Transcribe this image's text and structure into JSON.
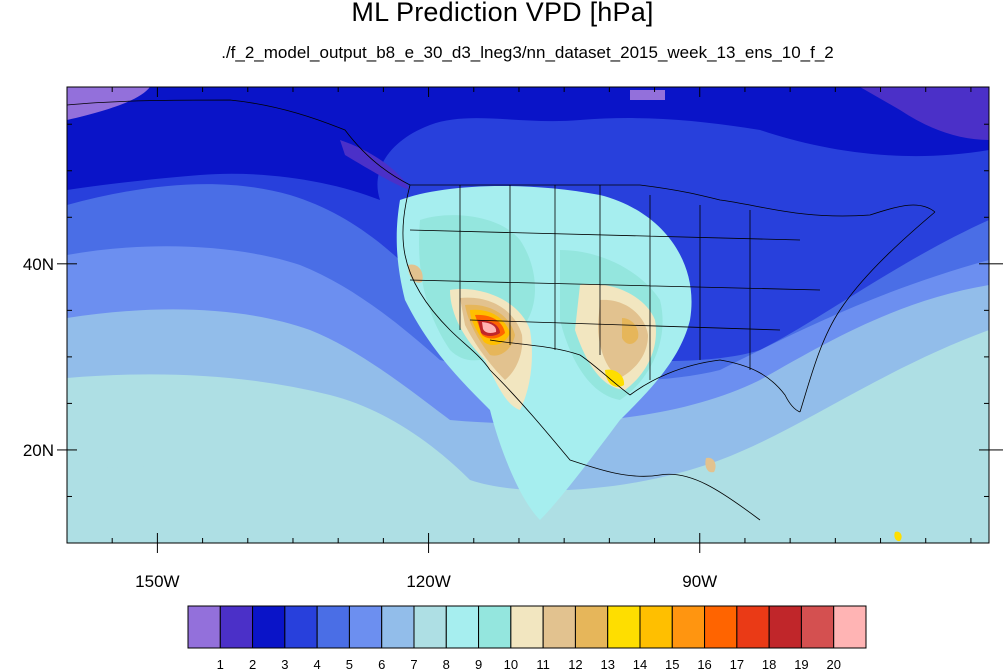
{
  "title": "ML Prediction VPD [hPa]",
  "subtitle": "./f_2_model_output_b8_e_30_d3_lneg3/nn_dataset_2015_week_13_ens_10_f_2",
  "map": {
    "projection": "cylindrical equidistant",
    "lon_range": [
      -160,
      -58
    ],
    "lat_range": [
      10,
      59
    ],
    "x_ticks": [
      {
        "value": -150,
        "label": "150W"
      },
      {
        "value": -120,
        "label": "120W"
      },
      {
        "value": -90,
        "label": "90W"
      }
    ],
    "y_ticks": [
      {
        "value": 40,
        "label": "40N"
      },
      {
        "value": 20,
        "label": "20N"
      }
    ],
    "field": "vapor pressure deficit"
  },
  "colorbar": {
    "colors": [
      "#9370db",
      "#4b30c8",
      "#0a14c8",
      "#2840dc",
      "#4a6ee6",
      "#6c8ff0",
      "#92bdea",
      "#aedfe4",
      "#a6eeef",
      "#94e6de",
      "#f2e6c0",
      "#e2c28f",
      "#e6b65a",
      "#fede00",
      "#ffbf00",
      "#ff9510",
      "#ff6400",
      "#ea3a16",
      "#c0262a",
      "#d45050",
      "#ffb4b4"
    ],
    "labels": [
      "1",
      "2",
      "3",
      "4",
      "5",
      "6",
      "7",
      "8",
      "9",
      "10",
      "11",
      "12",
      "13",
      "14",
      "15",
      "16",
      "17",
      "18",
      "19",
      "20"
    ]
  }
}
